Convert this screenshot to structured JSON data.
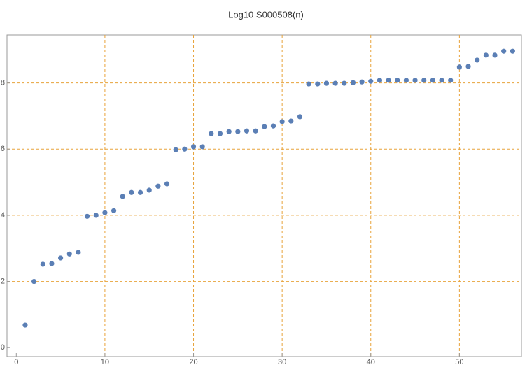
{
  "chart_data": {
    "type": "scatter",
    "title": "Log10 S000508(n)",
    "color": "#5b7fb5",
    "x": [
      1,
      2,
      3,
      4,
      5,
      6,
      7,
      8,
      9,
      10,
      11,
      12,
      13,
      14,
      15,
      16,
      17,
      18,
      19,
      20,
      21,
      22,
      23,
      24,
      25,
      26,
      27,
      28,
      29,
      30,
      31,
      32,
      33,
      34,
      35,
      36,
      37,
      38,
      39,
      40,
      41,
      42,
      43,
      44,
      45,
      46,
      47,
      48,
      49,
      50,
      51,
      52,
      53,
      54,
      55,
      56
    ],
    "values": [
      0.68,
      2.0,
      2.52,
      2.54,
      2.71,
      2.83,
      2.88,
      3.97,
      4.0,
      4.08,
      4.14,
      4.57,
      4.69,
      4.69,
      4.76,
      4.88,
      4.95,
      5.98,
      6.0,
      6.07,
      6.07,
      6.47,
      6.47,
      6.53,
      6.53,
      6.55,
      6.55,
      6.68,
      6.7,
      6.83,
      6.85,
      6.98,
      7.97,
      7.97,
      7.99,
      7.99,
      7.99,
      8.01,
      8.03,
      8.05,
      8.08,
      8.08,
      8.08,
      8.08,
      8.08,
      8.08,
      8.08,
      8.08,
      8.08,
      8.48,
      8.5,
      8.69,
      8.84,
      8.84,
      8.96,
      8.96
    ],
    "xlim": [
      -1.05,
      57
    ],
    "ylim": [
      -0.27,
      9.45
    ],
    "xticks": [
      0,
      10,
      20,
      30,
      40,
      50
    ],
    "yticks": [
      0,
      2,
      4,
      6,
      8
    ],
    "xgridlines": [
      10,
      20,
      30,
      40,
      50
    ],
    "ygridlines": [
      2,
      4,
      6,
      8
    ]
  }
}
